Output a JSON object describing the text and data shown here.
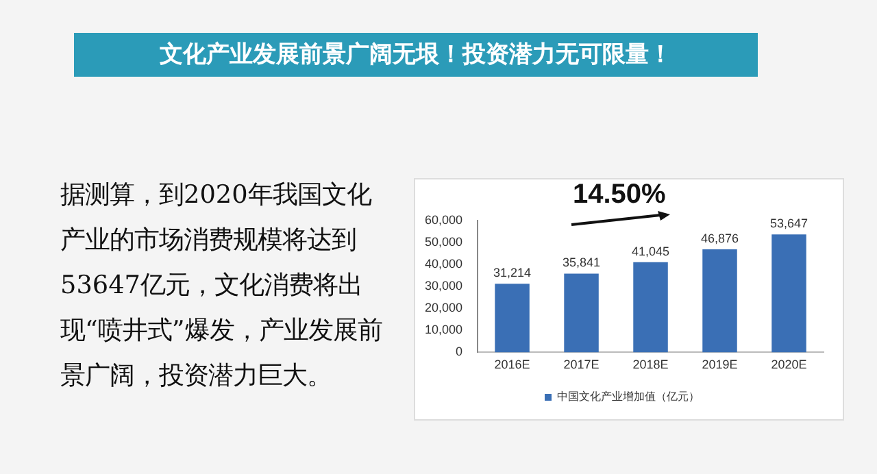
{
  "chart_data": {
    "type": "bar",
    "title": "文化产业发展前景广阔无垠！投资潜力无可限量！",
    "annotations": [
      "据测算，到2020年我国文化产业的市场消费规模将达到53647亿元，文化消费将出现“喷井式”爆发，产业发展前景广阔，投资潜力巨大。",
      "14.50%"
    ],
    "categories": [
      "2016E",
      "2017E",
      "2018E",
      "2019E",
      "2020E"
    ],
    "series": [
      {
        "name": "中国文化产业增加值（亿元）",
        "color": "#3a6fb5",
        "values": [
          31214,
          35841,
          41045,
          46876,
          53647
        ],
        "value_labels": [
          "31,214",
          "35,841",
          "41,045",
          "46,876",
          "53,647"
        ]
      }
    ],
    "ylim": [
      0,
      60000
    ],
    "yticks": [
      {
        "value": 0,
        "label": "0"
      },
      {
        "value": 10000,
        "label": "10,000"
      },
      {
        "value": 20000,
        "label": "20,000"
      },
      {
        "value": 30000,
        "label": "30,000"
      },
      {
        "value": 40000,
        "label": "40,000"
      },
      {
        "value": 50000,
        "label": "50,000"
      },
      {
        "value": 60000,
        "label": "60,000"
      }
    ],
    "grid": false,
    "legend": "bottom"
  }
}
